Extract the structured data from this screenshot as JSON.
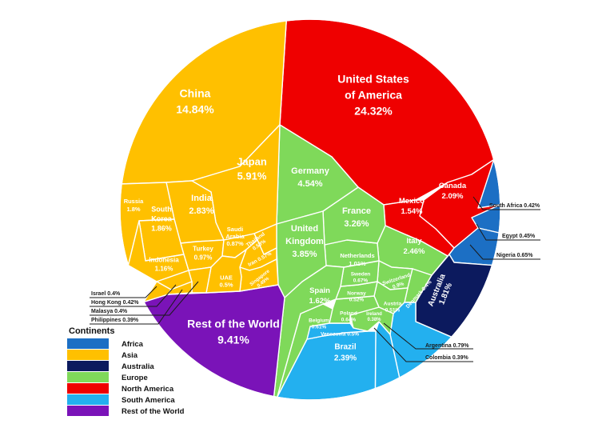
{
  "chart_data": {
    "type": "voronoi-treemap",
    "title": "",
    "unit": "%",
    "legend": {
      "title": "Continents",
      "placement": "bottom-left",
      "items": [
        {
          "name": "Africa",
          "color": "#1c6fc4"
        },
        {
          "name": "Asia",
          "color": "#ffc000"
        },
        {
          "name": "Australia",
          "color": "#0c1a5e"
        },
        {
          "name": "Europe",
          "color": "#7fd95a"
        },
        {
          "name": "North America",
          "color": "#ef0000"
        },
        {
          "name": "South America",
          "color": "#23b0ef"
        },
        {
          "name": "Rest of the World",
          "color": "#7a13b8"
        }
      ]
    },
    "countries": [
      {
        "name": "United States of America",
        "value": 24.32,
        "continent": "North America"
      },
      {
        "name": "China",
        "value": 14.84,
        "continent": "Asia"
      },
      {
        "name": "Rest of the World",
        "value": 9.41,
        "continent": "Rest of the World"
      },
      {
        "name": "Japan",
        "value": 5.91,
        "continent": "Asia"
      },
      {
        "name": "Germany",
        "value": 4.54,
        "continent": "Europe"
      },
      {
        "name": "United Kingdom",
        "value": 3.85,
        "continent": "Europe"
      },
      {
        "name": "France",
        "value": 3.26,
        "continent": "Europe"
      },
      {
        "name": "India",
        "value": 2.83,
        "continent": "Asia"
      },
      {
        "name": "Italy",
        "value": 2.46,
        "continent": "Europe"
      },
      {
        "name": "Brazil",
        "value": 2.39,
        "continent": "South America"
      },
      {
        "name": "Canada",
        "value": 2.09,
        "continent": "North America"
      },
      {
        "name": "South Korea",
        "value": 1.86,
        "continent": "Asia"
      },
      {
        "name": "Australia",
        "value": 1.81,
        "continent": "Australia"
      },
      {
        "name": "Russia",
        "value": 1.8,
        "continent": "Asia"
      },
      {
        "name": "Spain",
        "value": 1.62,
        "continent": "Europe"
      },
      {
        "name": "Mexico",
        "value": 1.54,
        "continent": "North America"
      },
      {
        "name": "Indonesia",
        "value": 1.16,
        "continent": "Asia"
      },
      {
        "name": "Netherlands",
        "value": 1.01,
        "continent": "Europe"
      },
      {
        "name": "Turkey",
        "value": 0.97,
        "continent": "Asia"
      },
      {
        "name": "Switzerland",
        "value": 0.9,
        "continent": "Europe"
      },
      {
        "name": "Saudi Arabia",
        "value": 0.87,
        "continent": "Asia"
      },
      {
        "name": "Argentina",
        "value": 0.79,
        "continent": "South America"
      },
      {
        "name": "Sweden",
        "value": 0.67,
        "continent": "Europe"
      },
      {
        "name": "Nigeria",
        "value": 0.65,
        "continent": "Africa"
      },
      {
        "name": "Poland",
        "value": 0.64,
        "continent": "Europe"
      },
      {
        "name": "Belgium",
        "value": 0.61,
        "continent": "Europe"
      },
      {
        "name": "Iran",
        "value": 0.57,
        "continent": "Asia"
      },
      {
        "name": "Thailand",
        "value": 0.53,
        "continent": "Asia"
      },
      {
        "name": "Norway",
        "value": 0.52,
        "continent": "Europe"
      },
      {
        "name": "Austria",
        "value": 0.51,
        "continent": "Europe"
      },
      {
        "name": "UAE",
        "value": 0.5,
        "continent": "Asia"
      },
      {
        "name": "Venezuela",
        "value": 0.5,
        "continent": "South America"
      },
      {
        "name": "Singapore",
        "value": 0.49,
        "continent": "Asia"
      },
      {
        "name": "Egypt",
        "value": 0.45,
        "continent": "Africa"
      },
      {
        "name": "Denmark",
        "value": 0.4,
        "continent": "Europe"
      },
      {
        "name": "Hong Kong",
        "value": 0.42,
        "continent": "Asia"
      },
      {
        "name": "South Africa",
        "value": 0.42,
        "continent": "Africa"
      },
      {
        "name": "Israel",
        "value": 0.4,
        "continent": "Asia"
      },
      {
        "name": "Malasya",
        "value": 0.4,
        "continent": "Asia"
      },
      {
        "name": "Philippines",
        "value": 0.39,
        "continent": "Asia"
      },
      {
        "name": "Colombia",
        "value": 0.39,
        "continent": "South America"
      },
      {
        "name": "Ireland",
        "value": 0.38,
        "continent": "Europe"
      }
    ]
  }
}
